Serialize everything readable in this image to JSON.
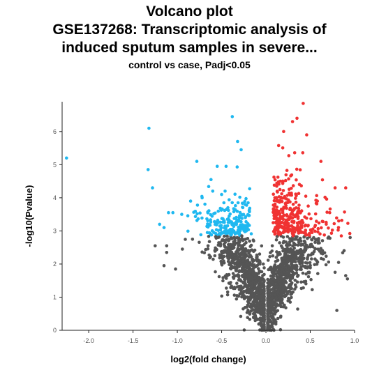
{
  "chart_data": {
    "type": "scatter",
    "title_lines": [
      "Volcano plot",
      "GSE137268: Transcriptomic analysis of",
      "induced sputum samples in severe..."
    ],
    "subtitle": "control vs case, Padj<0.05",
    "xlabel": "log2(fold change)",
    "ylabel": "-log10(Pvalue)",
    "xlim": [
      -2.3,
      1.0
    ],
    "ylim": [
      0,
      6.9
    ],
    "xticks": [
      "-2.0",
      "-1.5",
      "-1.0",
      "-0.5",
      "0.0",
      "0.5",
      "1.0"
    ],
    "yticks": [
      "0",
      "1",
      "2",
      "3",
      "4",
      "5",
      "6"
    ],
    "grid": false,
    "significance_threshold_y": 2.85,
    "colors": {
      "down": "#1fb8f0",
      "up": "#f03232",
      "ns": "#555555"
    },
    "highlight_points": [
      [
        -2.25,
        5.2
      ],
      [
        -1.32,
        6.1
      ],
      [
        -1.33,
        4.85
      ],
      [
        -1.28,
        4.3
      ],
      [
        -0.38,
        6.45
      ],
      [
        -0.32,
        5.7
      ],
      [
        -0.28,
        5.45
      ],
      [
        -0.45,
        4.95
      ],
      [
        -0.55,
        4.95
      ],
      [
        -0.78,
        5.1
      ],
      [
        -0.62,
        4.55
      ],
      [
        -0.5,
        4.1
      ],
      [
        -0.6,
        4.2
      ],
      [
        -0.72,
        4.0
      ],
      [
        -0.85,
        3.9
      ],
      [
        -0.95,
        3.5
      ],
      [
        -1.1,
        3.55
      ],
      [
        -1.05,
        3.55
      ],
      [
        -1.2,
        3.2
      ],
      [
        -1.15,
        3.1
      ],
      [
        0.42,
        6.85
      ],
      [
        0.3,
        6.3
      ],
      [
        0.35,
        6.4
      ],
      [
        0.62,
        5.1
      ],
      [
        0.78,
        4.3
      ],
      [
        0.9,
        4.3
      ],
      [
        0.72,
        3.55
      ],
      [
        0.58,
        3.9
      ],
      [
        0.2,
        6.0
      ],
      [
        0.46,
        5.9
      ]
    ],
    "ns_edge_points": [
      [
        -1.25,
        2.55
      ],
      [
        -1.12,
        2.55
      ],
      [
        -1.12,
        2.35
      ],
      [
        -1.15,
        1.95
      ],
      [
        -1.02,
        1.85
      ],
      [
        0.85,
        2.85
      ],
      [
        0.95,
        2.8
      ],
      [
        0.82,
        2.05
      ],
      [
        0.78,
        1.75
      ],
      [
        0.9,
        1.65
      ],
      [
        0.92,
        1.55
      ],
      [
        0.8,
        0.6
      ]
    ]
  }
}
